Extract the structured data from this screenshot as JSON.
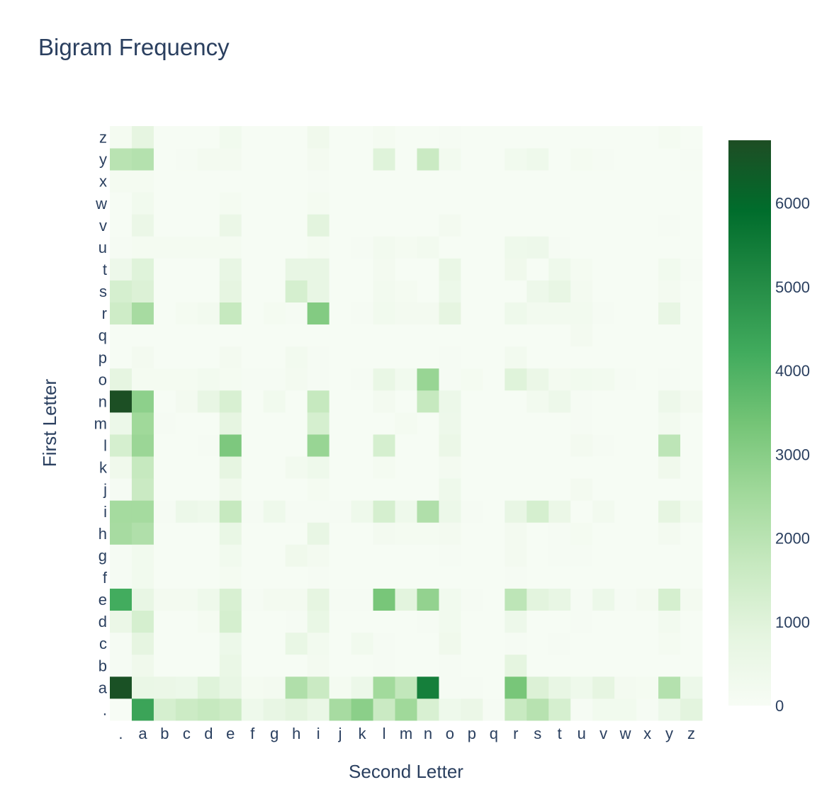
{
  "chart_data": {
    "type": "heatmap",
    "title": "Bigram Frequency",
    "xlabel": "Second Letter",
    "ylabel": "First Letter",
    "x": [
      ".",
      "a",
      "b",
      "c",
      "d",
      "e",
      "f",
      "g",
      "h",
      "i",
      "j",
      "k",
      "l",
      "m",
      "n",
      "o",
      "p",
      "q",
      "r",
      "s",
      "t",
      "u",
      "v",
      "w",
      "x",
      "y",
      "z"
    ],
    "y": [
      ".",
      "a",
      "b",
      "c",
      "d",
      "e",
      "f",
      "g",
      "h",
      "i",
      "j",
      "k",
      "l",
      "m",
      "n",
      "o",
      "p",
      "q",
      "r",
      "s",
      "t",
      "u",
      "v",
      "w",
      "x",
      "y",
      "z"
    ],
    "z": [
      [
        0,
        4400,
        1300,
        1550,
        1700,
        1550,
        400,
        700,
        900,
        600,
        2400,
        2950,
        1600,
        2550,
        1200,
        400,
        550,
        100,
        1650,
        2050,
        1300,
        80,
        300,
        300,
        100,
        500,
        900
      ],
      [
        6650,
        600,
        550,
        500,
        1000,
        700,
        150,
        200,
        2200,
        1600,
        150,
        500,
        2500,
        1800,
        5400,
        100,
        100,
        50,
        3300,
        1100,
        700,
        400,
        800,
        200,
        150,
        2100,
        500
      ],
      [
        100,
        350,
        50,
        50,
        50,
        600,
        50,
        50,
        50,
        200,
        50,
        50,
        100,
        50,
        50,
        100,
        50,
        50,
        850,
        50,
        50,
        50,
        50,
        50,
        50,
        50,
        50
      ],
      [
        100,
        800,
        50,
        50,
        50,
        500,
        50,
        50,
        650,
        250,
        50,
        300,
        100,
        50,
        50,
        350,
        50,
        50,
        100,
        50,
        100,
        50,
        50,
        50,
        50,
        150,
        50
      ],
      [
        550,
        1300,
        50,
        50,
        150,
        1300,
        50,
        50,
        100,
        650,
        50,
        50,
        50,
        50,
        100,
        300,
        50,
        50,
        450,
        50,
        50,
        100,
        50,
        50,
        50,
        250,
        50
      ],
      [
        4200,
        700,
        200,
        200,
        400,
        1200,
        100,
        200,
        200,
        800,
        100,
        100,
        3300,
        900,
        2800,
        300,
        100,
        50,
        1900,
        900,
        700,
        100,
        500,
        100,
        200,
        1300,
        200
      ],
      [
        100,
        300,
        50,
        50,
        50,
        150,
        50,
        50,
        50,
        100,
        50,
        50,
        50,
        50,
        50,
        50,
        50,
        50,
        100,
        50,
        50,
        50,
        50,
        50,
        50,
        50,
        50
      ],
      [
        100,
        300,
        50,
        50,
        50,
        300,
        50,
        50,
        350,
        200,
        50,
        50,
        50,
        50,
        50,
        100,
        50,
        50,
        200,
        50,
        100,
        100,
        50,
        50,
        50,
        50,
        50
      ],
      [
        2400,
        2200,
        50,
        50,
        50,
        650,
        50,
        50,
        50,
        700,
        50,
        50,
        200,
        150,
        150,
        200,
        50,
        50,
        200,
        50,
        100,
        150,
        50,
        50,
        50,
        200,
        50
      ],
      [
        2450,
        2450,
        100,
        500,
        400,
        1700,
        100,
        400,
        100,
        100,
        100,
        400,
        1300,
        400,
        2200,
        500,
        100,
        50,
        700,
        1300,
        550,
        50,
        250,
        50,
        50,
        800,
        300
      ],
      [
        100,
        1600,
        50,
        50,
        50,
        350,
        50,
        50,
        50,
        150,
        50,
        50,
        50,
        50,
        50,
        400,
        50,
        50,
        50,
        50,
        50,
        200,
        50,
        50,
        50,
        50,
        50
      ],
      [
        350,
        1700,
        50,
        50,
        50,
        800,
        50,
        50,
        250,
        400,
        50,
        50,
        150,
        50,
        50,
        200,
        50,
        50,
        50,
        50,
        50,
        50,
        50,
        50,
        50,
        350,
        50
      ],
      [
        1300,
        2650,
        50,
        50,
        100,
        3200,
        50,
        50,
        50,
        2700,
        50,
        50,
        1300,
        50,
        50,
        550,
        50,
        50,
        50,
        50,
        50,
        200,
        100,
        50,
        50,
        1900,
        50
      ],
      [
        500,
        2550,
        100,
        50,
        50,
        800,
        50,
        50,
        50,
        1300,
        50,
        50,
        50,
        150,
        50,
        450,
        50,
        50,
        50,
        50,
        50,
        100,
        50,
        50,
        50,
        250,
        50
      ],
      [
        6700,
        2900,
        50,
        200,
        700,
        1200,
        50,
        300,
        50,
        1700,
        50,
        50,
        200,
        50,
        1700,
        500,
        50,
        50,
        50,
        250,
        450,
        100,
        50,
        50,
        50,
        450,
        200
      ],
      [
        800,
        150,
        150,
        150,
        250,
        150,
        100,
        100,
        200,
        100,
        50,
        100,
        650,
        300,
        2700,
        100,
        150,
        50,
        1000,
        550,
        200,
        300,
        250,
        100,
        50,
        100,
        50
      ],
      [
        50,
        200,
        50,
        50,
        50,
        200,
        50,
        50,
        250,
        100,
        50,
        50,
        50,
        50,
        50,
        100,
        50,
        50,
        250,
        50,
        50,
        50,
        50,
        50,
        50,
        50,
        50
      ],
      [
        50,
        50,
        50,
        50,
        50,
        50,
        50,
        50,
        50,
        50,
        50,
        50,
        50,
        50,
        50,
        50,
        50,
        50,
        50,
        50,
        50,
        200,
        50,
        50,
        50,
        50,
        50
      ],
      [
        1500,
        2400,
        50,
        150,
        250,
        1700,
        50,
        150,
        100,
        3100,
        50,
        100,
        300,
        200,
        200,
        800,
        50,
        50,
        400,
        250,
        250,
        250,
        100,
        50,
        50,
        700,
        50
      ],
      [
        1300,
        1100,
        50,
        50,
        50,
        800,
        50,
        50,
        1300,
        700,
        50,
        50,
        250,
        150,
        50,
        500,
        50,
        50,
        50,
        450,
        700,
        200,
        50,
        50,
        50,
        200,
        50
      ],
      [
        450,
        1000,
        50,
        50,
        50,
        700,
        50,
        50,
        700,
        700,
        50,
        50,
        200,
        50,
        50,
        600,
        50,
        50,
        350,
        50,
        400,
        150,
        50,
        50,
        50,
        300,
        100
      ],
      [
        100,
        150,
        150,
        150,
        150,
        150,
        50,
        50,
        50,
        150,
        50,
        100,
        250,
        150,
        250,
        50,
        50,
        50,
        400,
        450,
        100,
        50,
        50,
        50,
        50,
        50,
        50
      ],
      [
        50,
        550,
        50,
        50,
        50,
        550,
        50,
        50,
        50,
        900,
        50,
        50,
        50,
        50,
        50,
        200,
        50,
        50,
        50,
        50,
        50,
        50,
        50,
        50,
        50,
        100,
        50
      ],
      [
        50,
        300,
        50,
        50,
        50,
        150,
        50,
        50,
        50,
        150,
        50,
        50,
        50,
        50,
        50,
        50,
        50,
        50,
        50,
        50,
        50,
        50,
        50,
        50,
        50,
        50,
        50
      ],
      [
        150,
        150,
        50,
        50,
        50,
        50,
        50,
        50,
        50,
        100,
        50,
        50,
        50,
        50,
        50,
        50,
        50,
        50,
        50,
        50,
        50,
        50,
        50,
        50,
        50,
        50,
        50
      ],
      [
        2000,
        2100,
        50,
        100,
        200,
        200,
        50,
        50,
        50,
        200,
        50,
        50,
        1000,
        50,
        1600,
        250,
        50,
        50,
        300,
        400,
        50,
        150,
        100,
        50,
        50,
        50,
        100
      ],
      [
        150,
        800,
        50,
        50,
        50,
        300,
        50,
        50,
        50,
        350,
        50,
        50,
        150,
        50,
        50,
        100,
        50,
        50,
        50,
        50,
        50,
        50,
        50,
        50,
        50,
        150,
        50
      ]
    ],
    "zmin": 0,
    "zmax": 6750,
    "colorbar_ticks": [
      0,
      1000,
      2000,
      3000,
      4000,
      5000,
      6000
    ],
    "colorscale": [
      [
        0,
        "#f7fcf5"
      ],
      [
        0.125,
        "#e5f5e0"
      ],
      [
        0.25,
        "#c7e9c0"
      ],
      [
        0.375,
        "#a1d99b"
      ],
      [
        0.5,
        "#74c476"
      ],
      [
        0.625,
        "#41ab5d"
      ],
      [
        0.75,
        "#238b45"
      ],
      [
        0.875,
        "#006d2c"
      ],
      [
        1,
        "#1e4d24"
      ]
    ]
  }
}
